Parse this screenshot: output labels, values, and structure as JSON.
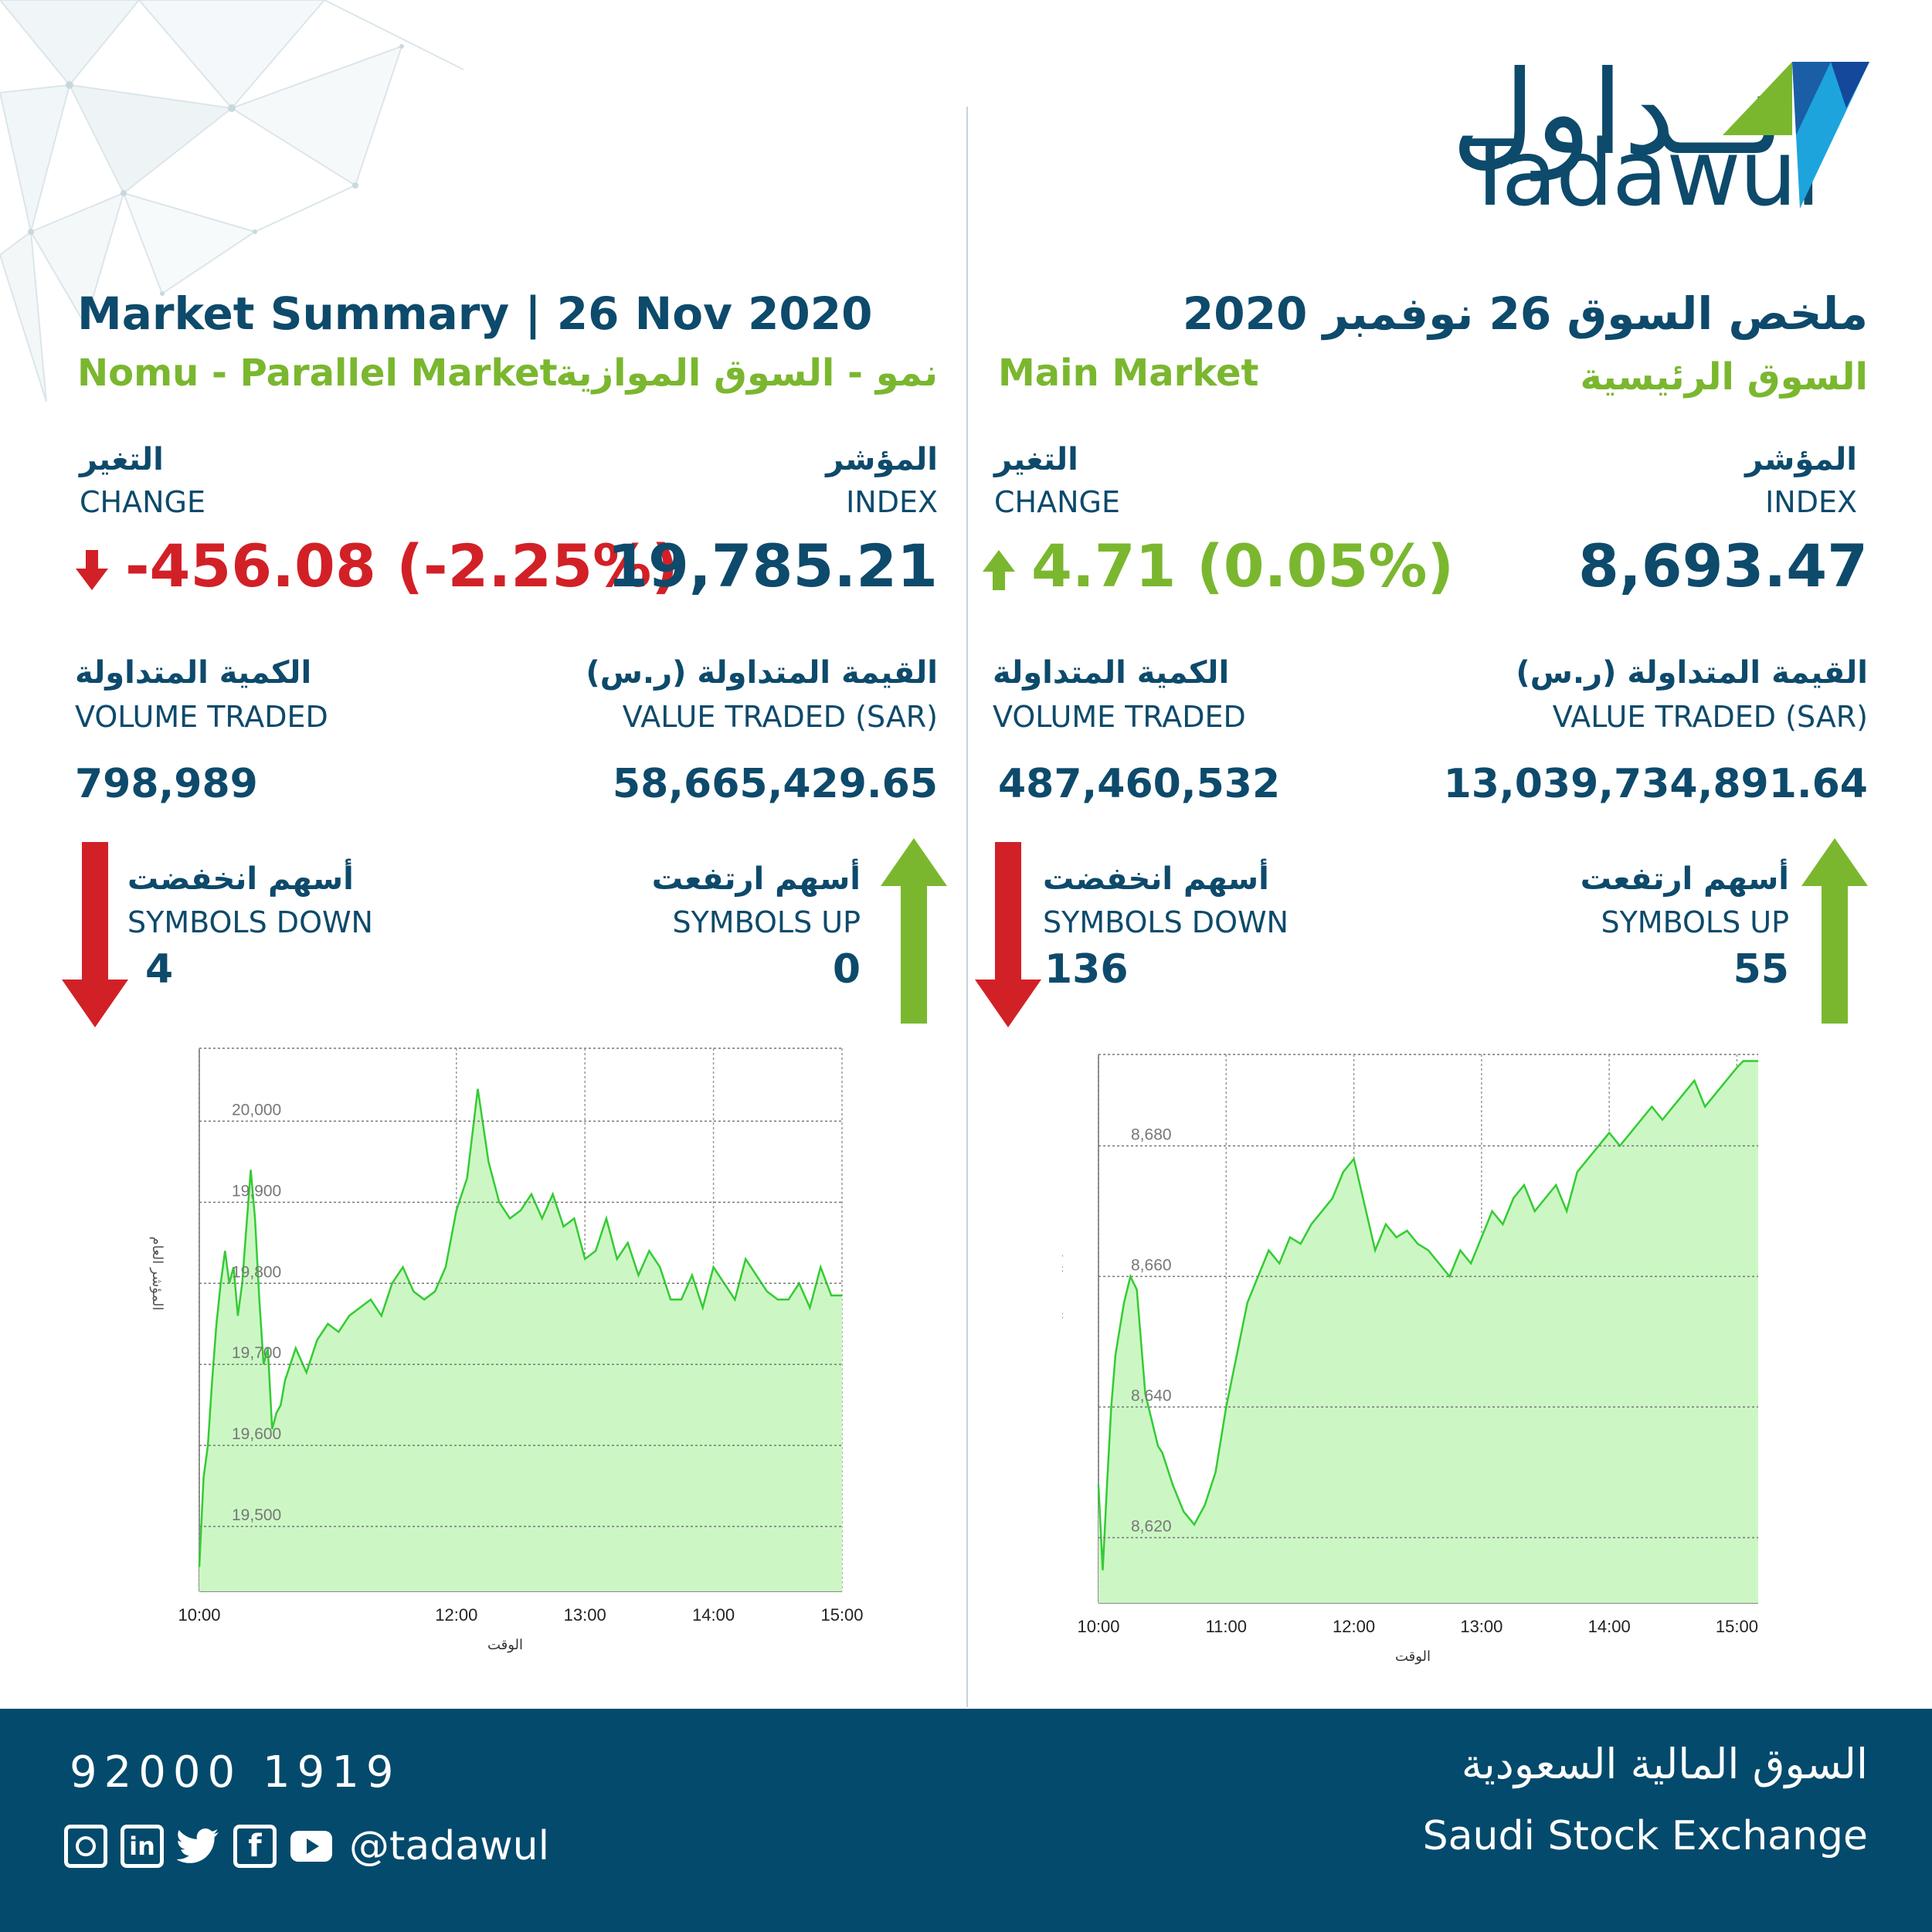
{
  "brand": {
    "logo_ar": "تــداول",
    "logo_en": "Tadawul",
    "colors": {
      "navy": "#0d4a6b",
      "green": "#7ab72f",
      "red": "#d22027",
      "blue": "#1ea4dd",
      "chart_fill": "#ccf7c4",
      "chart_line": "#33cc33"
    }
  },
  "header": {
    "title_en": "Market Summary | 26 Nov 2020",
    "title_ar": "ملخص السوق  26 نوفمبر 2020"
  },
  "nomu": {
    "name_en": "Nomu - Parallel Market",
    "name_ar": "نمو - السوق الموازية",
    "change_label_ar": "التغير",
    "change_label_en": "CHANGE",
    "change_value": "-456.08 (-2.25%)",
    "change_direction": "down",
    "index_label_ar": "المؤشر",
    "index_label_en": "INDEX",
    "index_value": "19,785.21",
    "volume_label_ar": "الكمية المتداولة",
    "volume_label_en": "VOLUME TRADED",
    "volume_value": "798,989",
    "value_label_ar": "القيمة المتداولة (ر.س)",
    "value_label_en": "VALUE TRADED (SAR)",
    "value_value": "58,665,429.65",
    "down_label_ar": "أسهم انخفضت",
    "down_label_en": "SYMBOLS DOWN",
    "down_value": "4",
    "up_label_ar": "أسهم ارتفعت",
    "up_label_en": "SYMBOLS UP",
    "up_value": "0"
  },
  "main": {
    "name_en": "Main Market",
    "name_ar": "السوق الرئيسية",
    "change_label_ar": "التغير",
    "change_label_en": "CHANGE",
    "change_value": "4.71 (0.05%)",
    "change_direction": "up",
    "index_label_ar": "المؤشر",
    "index_label_en": "INDEX",
    "index_value": "8,693.47",
    "volume_label_ar": "الكمية المتداولة",
    "volume_label_en": "VOLUME TRADED",
    "volume_value": "487,460,532",
    "value_label_ar": "القيمة المتداولة (ر.س)",
    "value_label_en": "VALUE TRADED (SAR)",
    "value_value": "13,039,734,891.64",
    "down_label_ar": "أسهم انخفضت",
    "down_label_en": "SYMBOLS DOWN",
    "down_value": "136",
    "up_label_ar": "أسهم ارتفعت",
    "up_label_en": "SYMBOLS UP",
    "up_value": "55"
  },
  "chart_data": [
    {
      "type": "area",
      "xlabel": "الوقت",
      "ylabel": "المؤشر العام",
      "x_ticks": [
        "10:00",
        "12:00",
        "13:00",
        "14:00",
        "15:00"
      ],
      "y_ticks": [
        "19,500",
        "19,600",
        "19,700",
        "19,800",
        "19,900",
        "20,000"
      ],
      "y_tick_values": [
        19500,
        19600,
        19700,
        19800,
        19900,
        20000
      ],
      "ylim": [
        19420,
        20090
      ],
      "xlim": [
        0,
        300
      ],
      "grid": true,
      "x": [
        0,
        2,
        4,
        6,
        8,
        10,
        12,
        14,
        16,
        18,
        20,
        22,
        24,
        26,
        28,
        30,
        32,
        34,
        36,
        38,
        40,
        45,
        50,
        55,
        60,
        65,
        70,
        75,
        80,
        85,
        90,
        95,
        100,
        105,
        110,
        115,
        120,
        125,
        130,
        135,
        140,
        145,
        150,
        155,
        160,
        165,
        170,
        175,
        180,
        185,
        190,
        195,
        200,
        205,
        210,
        215,
        220,
        225,
        230,
        235,
        240,
        245,
        250,
        255,
        260,
        265,
        270,
        275,
        280,
        285,
        290,
        295,
        300
      ],
      "values": [
        19450,
        19560,
        19600,
        19680,
        19750,
        19800,
        19840,
        19800,
        19820,
        19760,
        19800,
        19870,
        19940,
        19880,
        19780,
        19700,
        19720,
        19620,
        19640,
        19650,
        19680,
        19720,
        19690,
        19730,
        19750,
        19740,
        19760,
        19770,
        19780,
        19760,
        19800,
        19820,
        19790,
        19780,
        19790,
        19820,
        19890,
        19930,
        20040,
        19950,
        19900,
        19880,
        19890,
        19910,
        19880,
        19910,
        19870,
        19880,
        19830,
        19840,
        19880,
        19830,
        19850,
        19810,
        19840,
        19820,
        19780,
        19780,
        19810,
        19770,
        19820,
        19800,
        19780,
        19830,
        19810,
        19790,
        19780,
        19780,
        19800,
        19770,
        19820,
        19785,
        19785
      ]
    },
    {
      "type": "area",
      "xlabel": "الوقت",
      "ylabel": "المؤشر العام",
      "x_ticks": [
        "10:00",
        "11:00",
        "12:00",
        "13:00",
        "14:00",
        "15:00"
      ],
      "y_ticks": [
        "8,620",
        "8,640",
        "8,660",
        "8,680"
      ],
      "y_tick_values": [
        8620,
        8640,
        8660,
        8680
      ],
      "ylim": [
        8610,
        8694
      ],
      "xlim": [
        0,
        310
      ],
      "grid": true,
      "x": [
        0,
        2,
        4,
        6,
        8,
        10,
        12,
        15,
        18,
        20,
        22,
        25,
        28,
        30,
        35,
        40,
        45,
        50,
        55,
        60,
        65,
        70,
        75,
        80,
        85,
        90,
        95,
        100,
        105,
        110,
        115,
        120,
        125,
        130,
        135,
        140,
        145,
        150,
        155,
        160,
        165,
        170,
        175,
        180,
        185,
        190,
        195,
        200,
        205,
        210,
        215,
        220,
        225,
        230,
        235,
        240,
        245,
        250,
        255,
        260,
        265,
        270,
        275,
        280,
        285,
        290,
        295,
        300,
        303,
        305,
        308,
        310
      ],
      "values": [
        8628,
        8615,
        8628,
        8640,
        8648,
        8652,
        8656,
        8660,
        8658,
        8650,
        8642,
        8638,
        8634,
        8633,
        8628,
        8624,
        8622,
        8625,
        8630,
        8640,
        8648,
        8656,
        8660,
        8664,
        8662,
        8666,
        8665,
        8668,
        8670,
        8672,
        8676,
        8678,
        8671,
        8664,
        8668,
        8666,
        8667,
        8665,
        8664,
        8662,
        8660,
        8664,
        8662,
        8666,
        8670,
        8668,
        8672,
        8674,
        8670,
        8672,
        8674,
        8670,
        8676,
        8678,
        8680,
        8682,
        8680,
        8682,
        8684,
        8686,
        8684,
        8686,
        8688,
        8690,
        8686,
        8688,
        8690,
        8692,
        8693,
        8693,
        8693,
        8693
      ]
    }
  ],
  "footer": {
    "phone": "92000 1919",
    "handle": "@tadawul",
    "name_ar": "السوق المالية السعودية",
    "name_en": "Saudi Stock Exchange",
    "social_icons": [
      "instagram-icon",
      "linkedin-icon",
      "twitter-icon",
      "facebook-icon",
      "youtube-icon"
    ]
  }
}
